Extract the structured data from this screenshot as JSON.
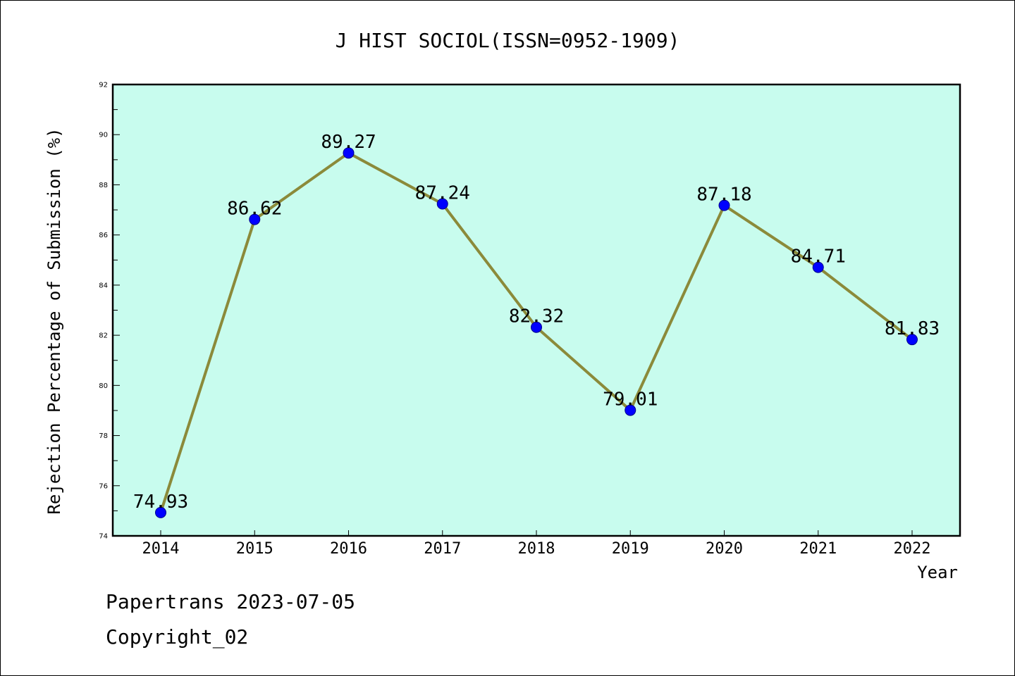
{
  "chart_data": {
    "type": "line",
    "title": "J HIST SOCIOL(ISSN=0952-1909)",
    "xlabel": "Year",
    "ylabel": "Rejection Percentage of Submission (%)",
    "categories": [
      "2014",
      "2015",
      "2016",
      "2017",
      "2018",
      "2019",
      "2020",
      "2021",
      "2022"
    ],
    "values": [
      74.93,
      86.62,
      89.27,
      87.24,
      82.32,
      79.01,
      87.18,
      84.71,
      81.83
    ],
    "data_labels": [
      "74.93",
      "86.62",
      "89.27",
      "87.24",
      "82.32",
      "79.01",
      "87.18",
      "84.71",
      "81.83"
    ],
    "ylim": [
      74,
      92
    ],
    "yticks": [
      "74",
      "76",
      "78",
      "80",
      "82",
      "84",
      "86",
      "88",
      "90",
      "92"
    ],
    "grid": false,
    "colors": {
      "plot_background": "#c8fcee",
      "line": "#8b8a3a",
      "marker": "#0000ff",
      "marker_edge": "#00008b"
    }
  },
  "footer": {
    "line1": "Papertrans 2023-07-05",
    "line2": "Copyright_02"
  }
}
